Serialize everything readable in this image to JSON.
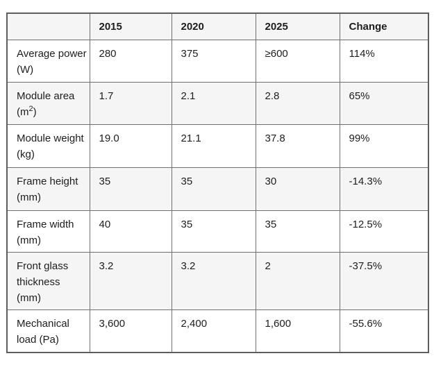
{
  "table": {
    "columns": [
      "",
      "2015",
      "2020",
      "2025",
      "Change"
    ],
    "rows": [
      {
        "label_l1": "Average power",
        "label_l2": "(W)",
        "values": [
          "280",
          "375",
          "≥600",
          "114%"
        ]
      },
      {
        "label_l1": "Module area",
        "label_l2_pre": "(m",
        "label_l2_sup": "2",
        "label_l2_post": ")",
        "values": [
          "1.7",
          "2.1",
          "2.8",
          "65%"
        ]
      },
      {
        "label_l1": "Module weight",
        "label_l2": "(kg)",
        "values": [
          "19.0",
          "21.1",
          "37.8",
          "99%"
        ]
      },
      {
        "label_l1": "Frame height",
        "label_l2": "(mm)",
        "values": [
          "35",
          "35",
          "30",
          "-14.3%"
        ]
      },
      {
        "label_l1": "Frame width",
        "label_l2": "(mm)",
        "values": [
          "40",
          "35",
          "35",
          "-12.5%"
        ]
      },
      {
        "label_l1": "Front glass",
        "label_l2": "thickness",
        "label_l3": "(mm)",
        "values": [
          "3.2",
          "3.2",
          "2",
          "-37.5%"
        ]
      },
      {
        "label_l1": "Mechanical",
        "label_l2": "load (Pa)",
        "values": [
          "3,600",
          "2,400",
          "1,600",
          "-55.6%"
        ]
      }
    ]
  }
}
